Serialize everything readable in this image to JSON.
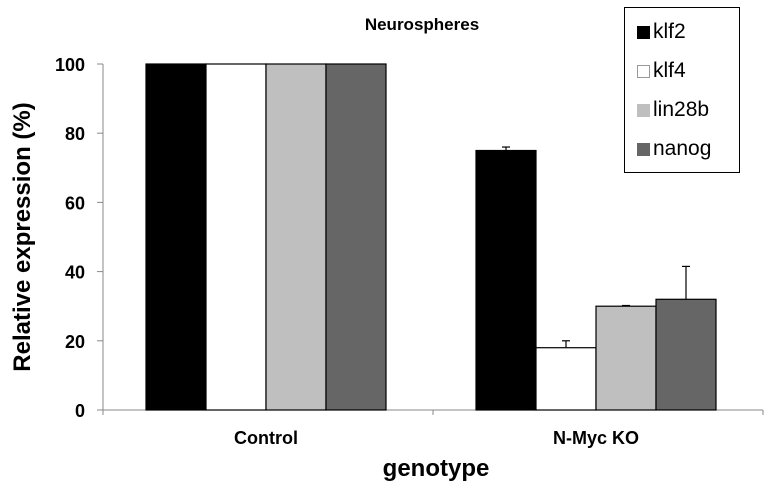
{
  "chart_data": {
    "type": "bar",
    "title": "Neurospheres",
    "xlabel": "genotype",
    "ylabel": "Relative expression (%)",
    "categories": [
      "Control",
      "N-Myc KO"
    ],
    "ylim": [
      0,
      100
    ],
    "yticks": [
      0,
      20,
      40,
      60,
      80,
      100
    ],
    "grid": false,
    "legend_position": "top-right",
    "series": [
      {
        "name": "klf2",
        "color": "#000000",
        "values": [
          100,
          75
        ],
        "errors": [
          0,
          1
        ]
      },
      {
        "name": "klf4",
        "color": "#ffffff",
        "values": [
          100,
          18
        ],
        "errors": [
          0,
          2
        ]
      },
      {
        "name": "lin28b",
        "color": "#bfbfbf",
        "values": [
          100,
          30
        ],
        "errors": [
          0,
          0.2
        ]
      },
      {
        "name": "nanog",
        "color": "#666666",
        "values": [
          100,
          32
        ],
        "errors": [
          0,
          9.5
        ]
      }
    ]
  }
}
